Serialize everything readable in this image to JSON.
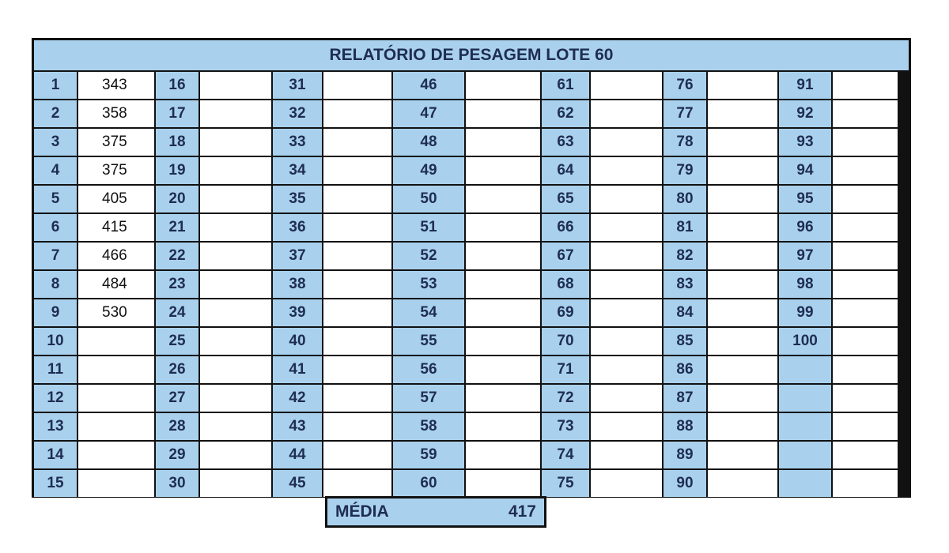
{
  "report": {
    "title": "RELATÓRIO DE PESAGEM LOTE  60",
    "cells": [
      {
        "num": "1",
        "value": "343"
      },
      {
        "num": "2",
        "value": "358"
      },
      {
        "num": "3",
        "value": "375"
      },
      {
        "num": "4",
        "value": "375"
      },
      {
        "num": "5",
        "value": "405"
      },
      {
        "num": "6",
        "value": "415"
      },
      {
        "num": "7",
        "value": "466"
      },
      {
        "num": "8",
        "value": "484"
      },
      {
        "num": "9",
        "value": "530"
      },
      {
        "num": "10",
        "value": ""
      },
      {
        "num": "11",
        "value": ""
      },
      {
        "num": "12",
        "value": ""
      },
      {
        "num": "13",
        "value": ""
      },
      {
        "num": "14",
        "value": ""
      },
      {
        "num": "15",
        "value": ""
      },
      {
        "num": "16",
        "value": ""
      },
      {
        "num": "17",
        "value": ""
      },
      {
        "num": "18",
        "value": ""
      },
      {
        "num": "19",
        "value": ""
      },
      {
        "num": "20",
        "value": ""
      },
      {
        "num": "21",
        "value": ""
      },
      {
        "num": "22",
        "value": ""
      },
      {
        "num": "23",
        "value": ""
      },
      {
        "num": "24",
        "value": ""
      },
      {
        "num": "25",
        "value": ""
      },
      {
        "num": "26",
        "value": ""
      },
      {
        "num": "27",
        "value": ""
      },
      {
        "num": "28",
        "value": ""
      },
      {
        "num": "29",
        "value": ""
      },
      {
        "num": "30",
        "value": ""
      },
      {
        "num": "31",
        "value": ""
      },
      {
        "num": "32",
        "value": ""
      },
      {
        "num": "33",
        "value": ""
      },
      {
        "num": "34",
        "value": ""
      },
      {
        "num": "35",
        "value": ""
      },
      {
        "num": "36",
        "value": ""
      },
      {
        "num": "37",
        "value": ""
      },
      {
        "num": "38",
        "value": ""
      },
      {
        "num": "39",
        "value": ""
      },
      {
        "num": "40",
        "value": ""
      },
      {
        "num": "41",
        "value": ""
      },
      {
        "num": "42",
        "value": ""
      },
      {
        "num": "43",
        "value": ""
      },
      {
        "num": "44",
        "value": ""
      },
      {
        "num": "45",
        "value": ""
      },
      {
        "num": "46",
        "value": ""
      },
      {
        "num": "47",
        "value": ""
      },
      {
        "num": "48",
        "value": ""
      },
      {
        "num": "49",
        "value": ""
      },
      {
        "num": "50",
        "value": ""
      },
      {
        "num": "51",
        "value": ""
      },
      {
        "num": "52",
        "value": ""
      },
      {
        "num": "53",
        "value": ""
      },
      {
        "num": "54",
        "value": ""
      },
      {
        "num": "55",
        "value": ""
      },
      {
        "num": "56",
        "value": ""
      },
      {
        "num": "57",
        "value": ""
      },
      {
        "num": "58",
        "value": ""
      },
      {
        "num": "59",
        "value": ""
      },
      {
        "num": "60",
        "value": ""
      },
      {
        "num": "61",
        "value": ""
      },
      {
        "num": "62",
        "value": ""
      },
      {
        "num": "63",
        "value": ""
      },
      {
        "num": "64",
        "value": ""
      },
      {
        "num": "65",
        "value": ""
      },
      {
        "num": "66",
        "value": ""
      },
      {
        "num": "67",
        "value": ""
      },
      {
        "num": "68",
        "value": ""
      },
      {
        "num": "69",
        "value": ""
      },
      {
        "num": "70",
        "value": ""
      },
      {
        "num": "71",
        "value": ""
      },
      {
        "num": "72",
        "value": ""
      },
      {
        "num": "73",
        "value": ""
      },
      {
        "num": "74",
        "value": ""
      },
      {
        "num": "75",
        "value": ""
      },
      {
        "num": "76",
        "value": ""
      },
      {
        "num": "77",
        "value": ""
      },
      {
        "num": "78",
        "value": ""
      },
      {
        "num": "79",
        "value": ""
      },
      {
        "num": "80",
        "value": ""
      },
      {
        "num": "81",
        "value": ""
      },
      {
        "num": "82",
        "value": ""
      },
      {
        "num": "83",
        "value": ""
      },
      {
        "num": "84",
        "value": ""
      },
      {
        "num": "85",
        "value": ""
      },
      {
        "num": "86",
        "value": ""
      },
      {
        "num": "87",
        "value": ""
      },
      {
        "num": "88",
        "value": ""
      },
      {
        "num": "89",
        "value": ""
      },
      {
        "num": "90",
        "value": ""
      },
      {
        "num": "91",
        "value": ""
      },
      {
        "num": "92",
        "value": ""
      },
      {
        "num": "93",
        "value": ""
      },
      {
        "num": "94",
        "value": ""
      },
      {
        "num": "95",
        "value": ""
      },
      {
        "num": "96",
        "value": ""
      },
      {
        "num": "97",
        "value": ""
      },
      {
        "num": "98",
        "value": ""
      },
      {
        "num": "99",
        "value": ""
      },
      {
        "num": "100",
        "value": ""
      },
      {
        "num": "",
        "value": ""
      },
      {
        "num": "",
        "value": ""
      },
      {
        "num": "",
        "value": ""
      },
      {
        "num": "",
        "value": ""
      },
      {
        "num": "",
        "value": ""
      }
    ],
    "media_label": "MÉDIA",
    "media_value": "417"
  },
  "colors": {
    "header_fill": "#a9d1ee",
    "header_text": "#1f2d52",
    "border": "#111111"
  }
}
